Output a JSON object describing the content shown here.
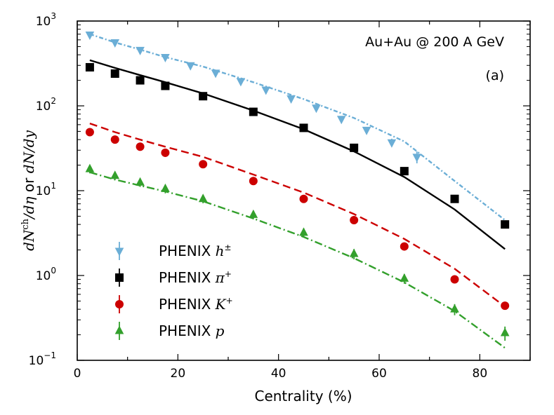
{
  "chart_data": {
    "type": "scatter",
    "title": "",
    "annotation": "Au+Au @ 200 A GeV",
    "panel_label": "(a)",
    "xlabel": "Centrality (%)",
    "ylabel": "dN^ch/dη or dN/dy",
    "ylabel_parts": {
      "a": "dN",
      "b": "ch",
      "c": "/dη",
      "d": " or ",
      "e": "dN/dy"
    },
    "xlim": [
      0,
      90
    ],
    "ylim": [
      0.1,
      1000
    ],
    "yscale": "log",
    "x_ticks": [
      "0",
      "20",
      "40",
      "60",
      "80"
    ],
    "y_ticks": [
      {
        "base": "10",
        "exp": "−1"
      },
      {
        "base": "10",
        "exp": "0"
      },
      {
        "base": "10",
        "exp": "1"
      },
      {
        "base": "10",
        "exp": "2"
      },
      {
        "base": "10",
        "exp": "3"
      }
    ],
    "series": [
      {
        "name": "PHENIX h±",
        "legend_text": "PHENIX ",
        "legend_math": "h±",
        "marker": "triangle-down",
        "color": "#6baed6",
        "x": [
          2.5,
          7.5,
          12.5,
          17.5,
          22.5,
          27.5,
          32.5,
          37.5,
          42.5,
          47.5,
          52.5,
          57.5,
          62.5,
          67.5
        ],
        "y": [
          690,
          560,
          455,
          375,
          300,
          245,
          195,
          155,
          122,
          95,
          70,
          52,
          37,
          25
        ],
        "yerr": [
          30,
          25,
          20,
          18,
          15,
          12,
          10,
          8,
          7,
          6,
          5,
          4,
          4,
          4
        ]
      },
      {
        "name": "PHENIX π+",
        "legend_text": "PHENIX ",
        "legend_math": "π+",
        "marker": "square",
        "color": "#000000",
        "x": [
          2.5,
          7.5,
          12.5,
          17.5,
          25,
          35,
          45,
          55,
          65,
          75,
          85
        ],
        "y": [
          285,
          240,
          200,
          172,
          130,
          85,
          55,
          32,
          17,
          8,
          4
        ],
        "yerr": [
          10,
          10,
          8,
          7,
          5,
          3,
          2,
          1.5,
          1,
          0.5,
          0.3
        ]
      },
      {
        "name": "PHENIX K+",
        "legend_text": "PHENIX ",
        "legend_math": "K+",
        "marker": "circle",
        "color": "#cc0000",
        "x": [
          2.5,
          7.5,
          12.5,
          17.5,
          25,
          35,
          45,
          55,
          65,
          75,
          85
        ],
        "y": [
          49,
          40,
          33,
          28,
          20.5,
          13,
          8,
          4.5,
          2.2,
          0.9,
          0.44
        ],
        "yerr": [
          5,
          4,
          3.5,
          3,
          2,
          1.3,
          0.8,
          0.4,
          0.2,
          0.08,
          0.04
        ]
      },
      {
        "name": "PHENIX p",
        "legend_text": "PHENIX ",
        "legend_math": "p",
        "marker": "triangle-up",
        "color": "#33a02c",
        "x": [
          2.5,
          7.5,
          12.5,
          17.5,
          25,
          35,
          45,
          55,
          65,
          75,
          85
        ],
        "y": [
          18,
          15,
          12.5,
          10.5,
          8,
          5.2,
          3.2,
          1.8,
          0.92,
          0.4,
          0.21
        ],
        "yerr": [
          2,
          1.7,
          1.4,
          1.2,
          0.9,
          0.6,
          0.4,
          0.25,
          0.12,
          0.06,
          0.04
        ]
      }
    ],
    "model_curves": [
      {
        "name": "h± model",
        "style": "dashdot-fine",
        "color": "#6baed6",
        "x": [
          2.5,
          7.5,
          12.5,
          17.5,
          25,
          35,
          45,
          55,
          65,
          75,
          85
        ],
        "y": [
          700,
          560,
          460,
          375,
          290,
          190,
          120,
          72,
          38,
          13,
          4.5
        ]
      },
      {
        "name": "π+ model",
        "style": "solid",
        "color": "#000000",
        "x": [
          2.5,
          7.5,
          12.5,
          17.5,
          25,
          35,
          45,
          55,
          65,
          75,
          85
        ],
        "y": [
          345,
          280,
          230,
          190,
          140,
          88,
          53,
          29,
          14.5,
          6,
          2.05
        ]
      },
      {
        "name": "K+ model",
        "style": "dashed",
        "color": "#cc0000",
        "x": [
          2.5,
          7.5,
          12.5,
          17.5,
          25,
          35,
          45,
          55,
          65,
          75,
          85
        ],
        "y": [
          62,
          49,
          40,
          33,
          25,
          15.5,
          9.5,
          5.3,
          2.7,
          1.2,
          0.43
        ]
      },
      {
        "name": "p model",
        "style": "dashdot",
        "color": "#33a02c",
        "x": [
          2.5,
          7.5,
          12.5,
          17.5,
          25,
          35,
          45,
          55,
          65,
          75,
          85
        ],
        "y": [
          16.5,
          13.5,
          11.5,
          9.8,
          7.5,
          4.7,
          2.85,
          1.6,
          0.83,
          0.38,
          0.14
        ]
      }
    ]
  }
}
